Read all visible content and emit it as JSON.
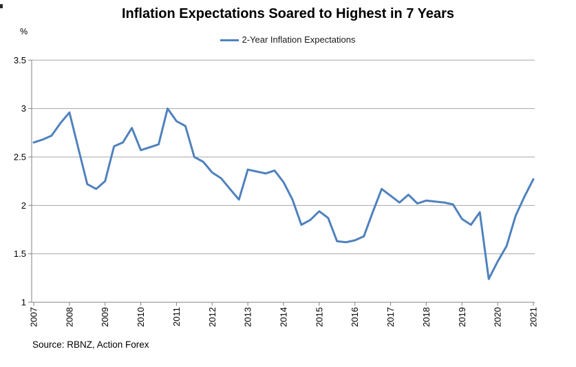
{
  "title": "Inflation Expectations Soared to Highest in 7 Years",
  "y_axis_unit": "%",
  "legend": {
    "label": "2-Year Inflation Expectations"
  },
  "source": "Source: RBNZ, Action Forex",
  "colors": {
    "line": "#4F81BD",
    "gridline": "#A6A6A6",
    "axis": "#808080",
    "text": "#000000"
  },
  "chart_data": {
    "type": "line",
    "title": "Inflation Expectations Soared to Highest in 7 Years",
    "ylabel": "%",
    "xlabel": "",
    "ylim": [
      1,
      3.5
    ],
    "y_ticks": [
      3.5,
      3,
      2.5,
      2,
      1.5,
      1
    ],
    "grid": "horizontal-only",
    "legend_position": "top-center",
    "x_start": 2007,
    "x_step": 0.25,
    "x_tick_labels": [
      "2007",
      "2008",
      "2009",
      "2010",
      "2011",
      "2012",
      "2013",
      "2014",
      "2015",
      "2016",
      "2017",
      "2018",
      "2019",
      "2020",
      "2021"
    ],
    "x_ticks_every_n_points": 4,
    "series": [
      {
        "name": "2-Year Inflation Expectations",
        "values": [
          2.65,
          2.68,
          2.72,
          2.85,
          2.96,
          2.59,
          2.22,
          2.17,
          2.25,
          2.61,
          2.65,
          2.8,
          2.57,
          2.6,
          2.63,
          3.0,
          2.87,
          2.82,
          2.5,
          2.45,
          2.34,
          2.28,
          2.17,
          2.06,
          2.37,
          2.35,
          2.33,
          2.36,
          2.24,
          2.06,
          1.8,
          1.85,
          1.94,
          1.87,
          1.63,
          1.62,
          1.64,
          1.68,
          1.93,
          2.17,
          2.1,
          2.03,
          2.11,
          2.02,
          2.05,
          2.04,
          2.03,
          2.01,
          1.86,
          1.8,
          1.93,
          1.24,
          1.42,
          1.58,
          1.89,
          2.09,
          2.27
        ]
      }
    ]
  }
}
